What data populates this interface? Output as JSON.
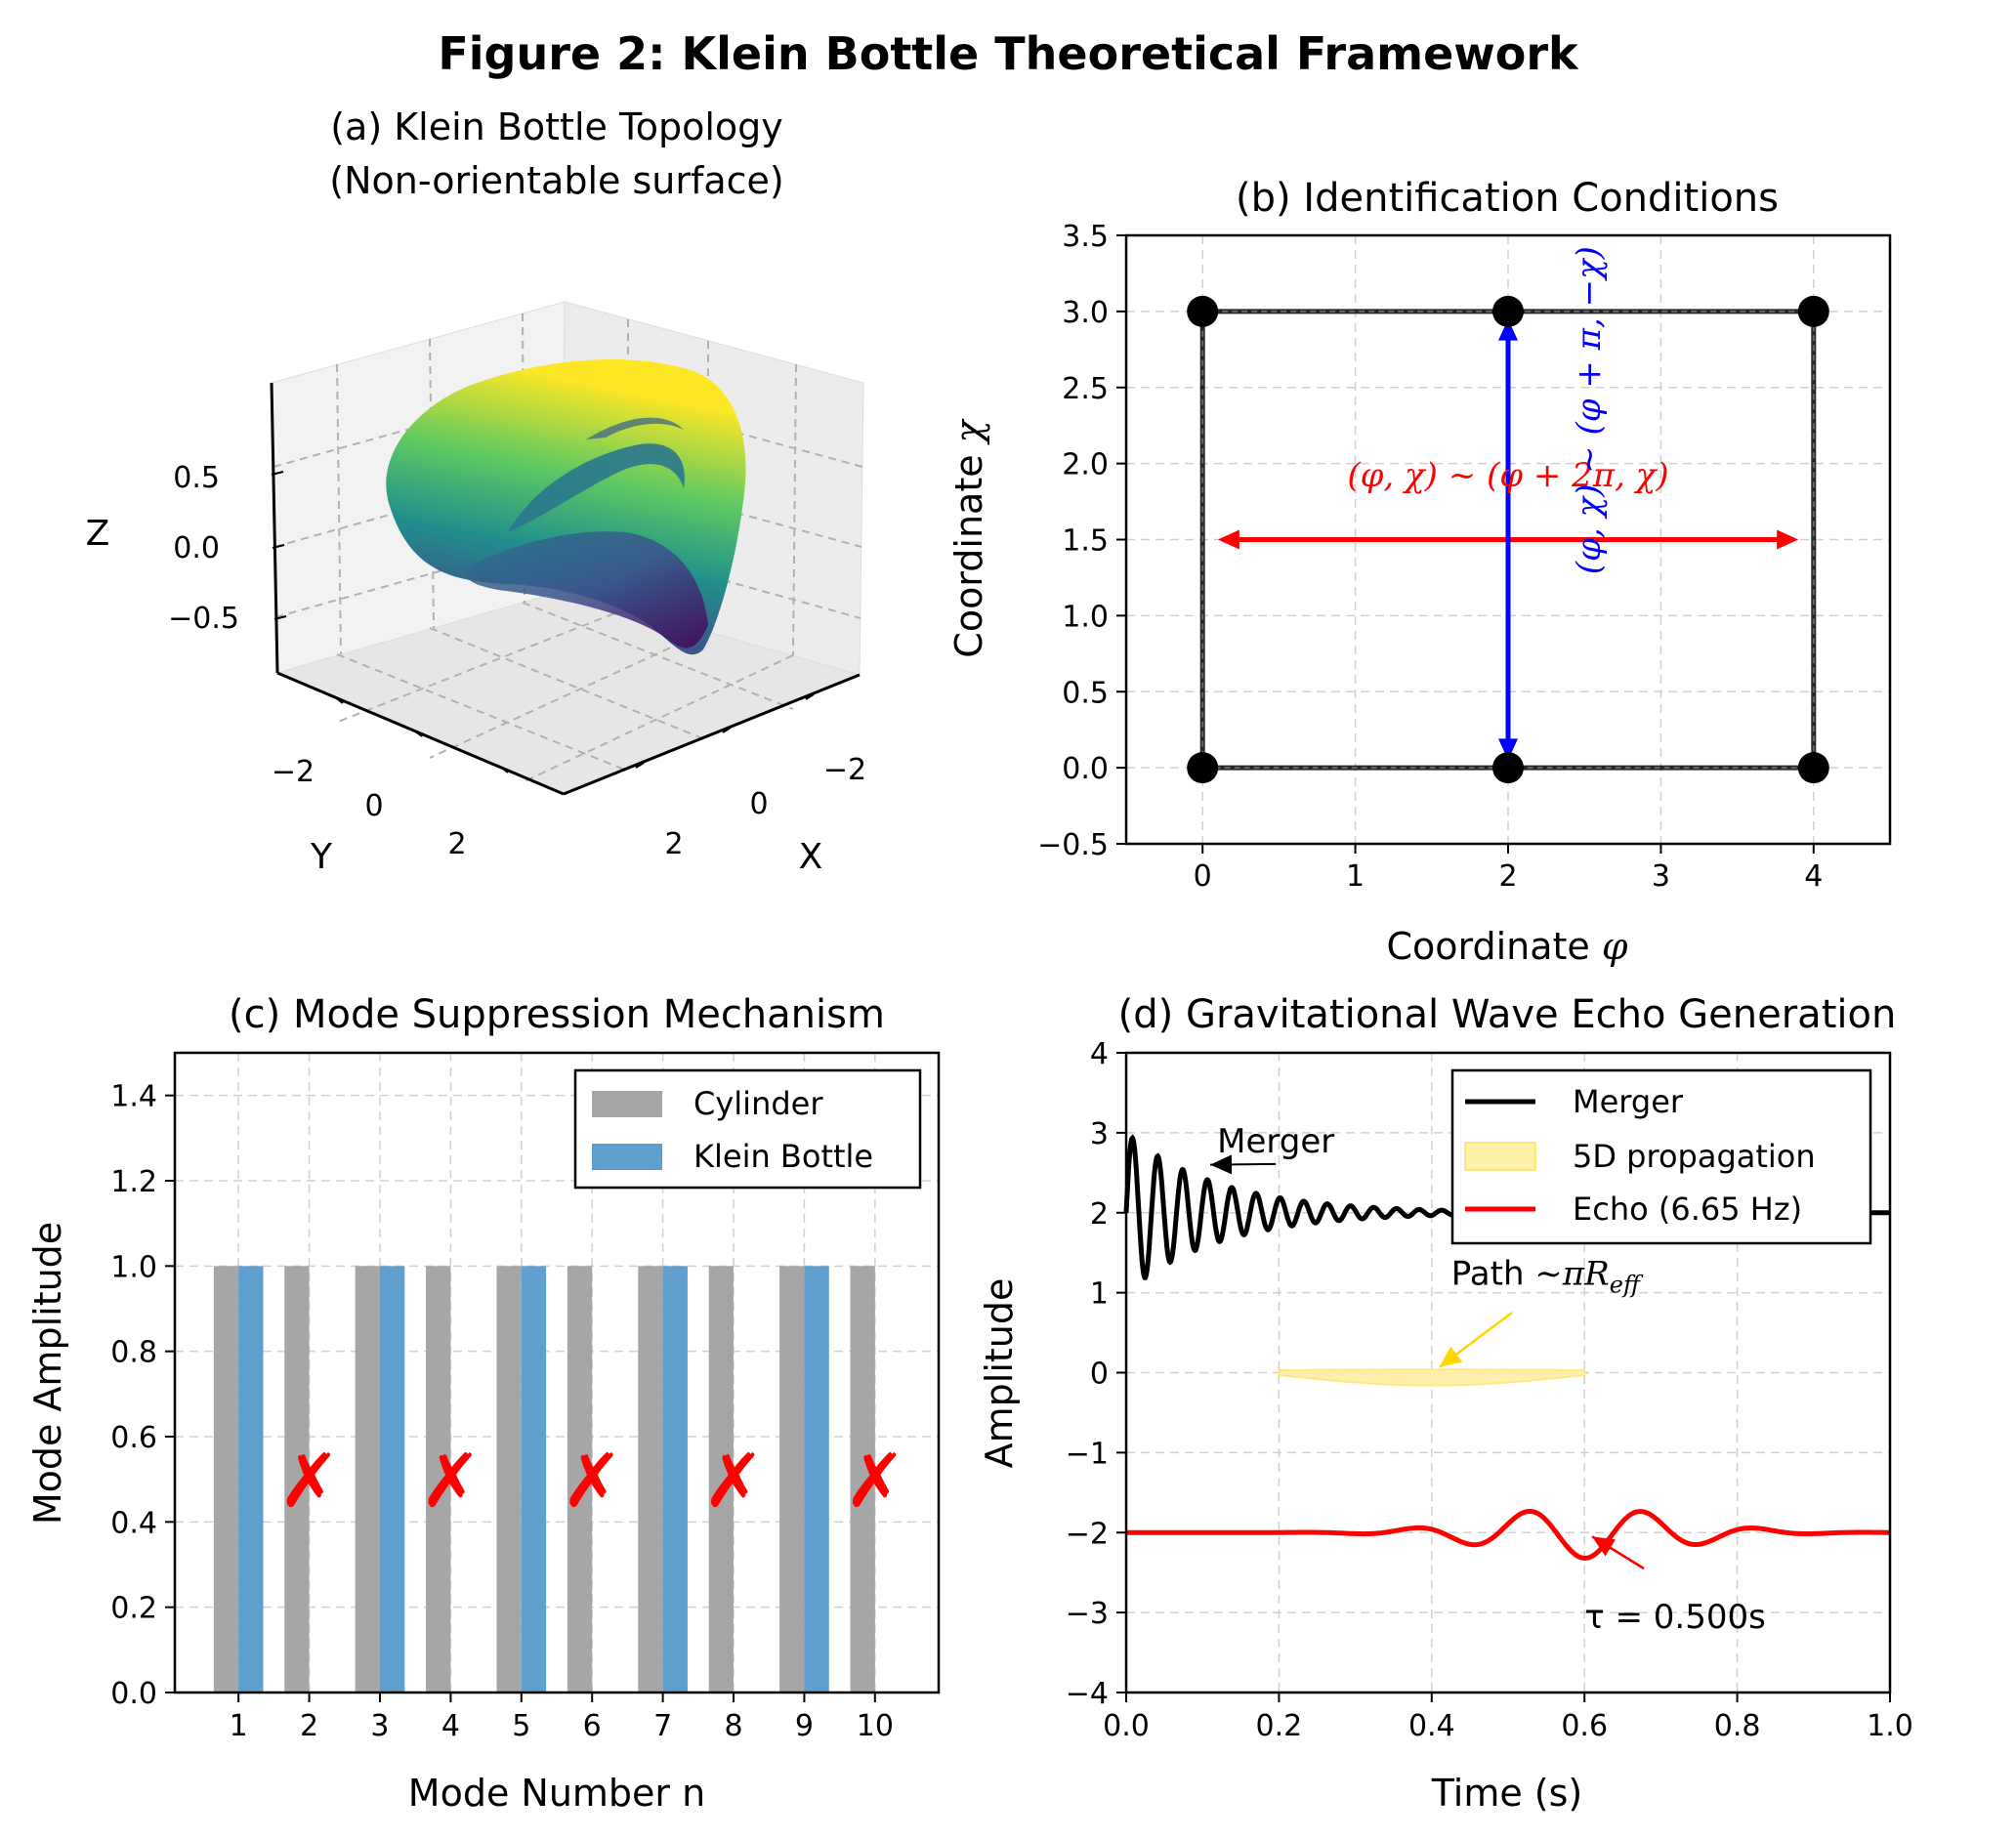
{
  "figure": {
    "title": "Figure 2: Klein Bottle Theoretical Framework"
  },
  "colors": {
    "grey_bar": "#a6a6a6",
    "blue_bar": "#5f9fcd",
    "red": "#ff0000",
    "blue": "#0000ff",
    "black": "#000000",
    "gold": "#ffd700",
    "grid": "#d0d0d0"
  },
  "chart_data": [
    {
      "panel": "a",
      "type": "surface3d",
      "title_line1": "(a) Klein Bottle Topology",
      "title_line2": "(Non-orientable surface)",
      "xlabel": "X",
      "ylabel": "Y",
      "zlabel": "Z",
      "z_ticks": [
        "0.5",
        "0.0",
        "−0.5"
      ],
      "y_ticks": [
        "−2",
        "0",
        "2"
      ],
      "x_ticks": [
        "−2",
        "0",
        "2"
      ],
      "colormap": "viridis"
    },
    {
      "panel": "b",
      "type": "line",
      "title": "(b) Identification Conditions",
      "xlabel_prefix": "Coordinate ",
      "xlabel_sym": "φ",
      "ylabel_prefix": "Coordinate ",
      "ylabel_sym": "χ",
      "xlim": [
        -0.5,
        4.5
      ],
      "ylim": [
        -0.5,
        3.5
      ],
      "xticks": [
        0,
        1,
        2,
        3,
        4
      ],
      "yticks": [
        -0.5,
        0.0,
        0.5,
        1.0,
        1.5,
        2.0,
        2.5,
        3.0,
        3.5
      ],
      "xtick_labels": [
        "0",
        "1",
        "2",
        "3",
        "4"
      ],
      "ytick_labels": [
        "−0.5",
        "0.0",
        "0.5",
        "1.0",
        "1.5",
        "2.0",
        "2.5",
        "3.0",
        "3.5"
      ],
      "rectangle": {
        "x": [
          0,
          4
        ],
        "y": [
          0,
          3
        ]
      },
      "points": [
        [
          0,
          0
        ],
        [
          2,
          0
        ],
        [
          4,
          0
        ],
        [
          0,
          3
        ],
        [
          2,
          3
        ],
        [
          4,
          3
        ]
      ],
      "arrow_horizontal": {
        "from": [
          0.1,
          1.5
        ],
        "to": [
          3.9,
          1.5
        ]
      },
      "arrow_vertical": {
        "from": [
          2,
          0.05
        ],
        "to": [
          2,
          2.95
        ]
      },
      "label_red": "(φ, χ) ~ (φ + 2π, χ)",
      "label_blue": "(φ, χ) ~ (φ + π, −χ)",
      "label_red_pos": [
        2.0,
        1.85
      ],
      "label_blue_pos": [
        2.6,
        2.35
      ]
    },
    {
      "panel": "c",
      "type": "bar",
      "title": "(c) Mode Suppression Mechanism",
      "xlabel": "Mode Number n",
      "ylabel": "Mode Amplitude",
      "ylim": [
        0,
        1.5
      ],
      "xlim": [
        0.1,
        10.9
      ],
      "categories": [
        "1",
        "2",
        "3",
        "4",
        "5",
        "6",
        "7",
        "8",
        "9",
        "10"
      ],
      "yticks": [
        0.0,
        0.2,
        0.4,
        0.6,
        0.8,
        1.0,
        1.2,
        1.4
      ],
      "ytick_labels": [
        "0.0",
        "0.2",
        "0.4",
        "0.6",
        "0.8",
        "1.0",
        "1.2",
        "1.4"
      ],
      "series": [
        {
          "name": "Cylinder",
          "values": [
            1,
            1,
            1,
            1,
            1,
            1,
            1,
            1,
            1,
            1
          ]
        },
        {
          "name": "Klein Bottle",
          "values": [
            1,
            0,
            1,
            0,
            1,
            0,
            1,
            0,
            1,
            0
          ]
        }
      ],
      "suppressed_marker": "✗",
      "suppressed_modes": [
        2,
        4,
        6,
        8,
        10
      ],
      "marker_y": 0.5,
      "legend": "upper-right"
    },
    {
      "panel": "d",
      "type": "line",
      "title": "(d) Gravitational Wave Echo Generation",
      "xlabel": "Time (s)",
      "ylabel": "Amplitude",
      "xlim": [
        0,
        1.0
      ],
      "ylim": [
        -4,
        4
      ],
      "xticks": [
        0.0,
        0.2,
        0.4,
        0.6,
        0.8,
        1.0
      ],
      "xtick_labels": [
        "0.0",
        "0.2",
        "0.4",
        "0.6",
        "0.8",
        "1.0"
      ],
      "yticks": [
        -4,
        -3,
        -2,
        -1,
        0,
        1,
        2,
        3,
        4
      ],
      "ytick_labels": [
        "−4",
        "−3",
        "−2",
        "−1",
        "0",
        "1",
        "2",
        "3",
        "4"
      ],
      "series": [
        {
          "name": "Merger",
          "type": "line",
          "offset": 2,
          "amplitude": 1,
          "decay_tau": 0.12,
          "freq_hz": 30,
          "freq_chirp": 5,
          "t_range": [
            0,
            1.0
          ]
        },
        {
          "name": "5D propagation",
          "type": "band",
          "t_range": [
            0.2,
            0.6
          ],
          "center": 0
        },
        {
          "name": "Echo (6.65 Hz)",
          "type": "line",
          "offset": -2,
          "freq_hz": 6.65,
          "peak_amp": 0.32,
          "peak_t": 0.6,
          "width": 0.17,
          "t_range": [
            0,
            1.0
          ]
        }
      ],
      "annotations": [
        {
          "text": "Merger",
          "text_pos": [
            0.1,
            3.0
          ],
          "xy": [
            0.11,
            2.6
          ]
        },
        {
          "text": "Path",
          "text_pos": [
            0.4,
            1.0
          ],
          "xy": [
            0.41,
            0.07
          ],
          "math": "∼πR",
          "math_sub": "eff"
        },
        {
          "text": "τ = 0.500s",
          "text_pos": [
            0.6,
            -2.9
          ],
          "xy": [
            0.61,
            -2.05
          ]
        }
      ],
      "legend": "upper-right"
    }
  ]
}
